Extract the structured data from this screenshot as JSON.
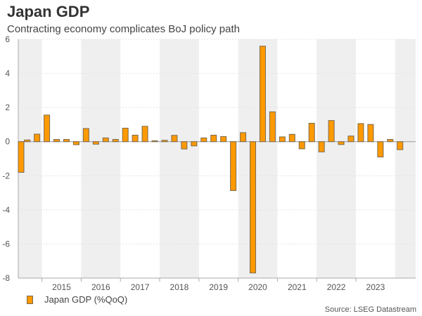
{
  "title": "Japan GDP",
  "subtitle": "Contracting economy complicates BoJ policy path",
  "source": "Source: LSEG Datastream",
  "colors": {
    "bar": "#ff9900",
    "bar_border": "#7a6a50",
    "band": "#efefef"
  },
  "chart_data": {
    "type": "bar",
    "title": "Japan GDP",
    "subtitle": "Contracting economy complicates BoJ policy path",
    "xlabel": "",
    "ylabel": "",
    "ylim": [
      -8,
      6
    ],
    "yticks": [
      6,
      4,
      2,
      0,
      -2,
      -4,
      -6,
      -8
    ],
    "xtick_labels": [
      "2015",
      "2016",
      "2017",
      "2018",
      "2019",
      "2020",
      "2021",
      "2022",
      "2023"
    ],
    "grid": true,
    "legend": "bottom-left",
    "categories": [
      "2014Q2",
      "2014Q3",
      "2014Q4",
      "2015Q1",
      "2015Q2",
      "2015Q3",
      "2015Q4",
      "2016Q1",
      "2016Q2",
      "2016Q3",
      "2016Q4",
      "2017Q1",
      "2017Q2",
      "2017Q3",
      "2017Q4",
      "2018Q1",
      "2018Q2",
      "2018Q3",
      "2018Q4",
      "2019Q1",
      "2019Q2",
      "2019Q3",
      "2019Q4",
      "2020Q1",
      "2020Q2",
      "2020Q3",
      "2020Q4",
      "2021Q1",
      "2021Q2",
      "2021Q3",
      "2021Q4",
      "2022Q1",
      "2022Q2",
      "2022Q3",
      "2022Q4",
      "2023Q1",
      "2023Q2",
      "2023Q3",
      "2023Q4",
      "2024Q1"
    ],
    "series": [
      {
        "name": "Japan GDP (%QoQ)",
        "values": [
          -1.8,
          0.1,
          0.44,
          1.56,
          0.13,
          0.13,
          -0.18,
          0.77,
          -0.15,
          0.22,
          0.13,
          0.79,
          0.38,
          0.9,
          0.05,
          0.08,
          0.37,
          -0.43,
          -0.25,
          0.22,
          0.38,
          0.3,
          -2.87,
          0.53,
          -7.7,
          5.6,
          1.75,
          0.28,
          0.43,
          -0.42,
          1.08,
          -0.6,
          1.24,
          -0.17,
          0.33,
          1.06,
          1.01,
          -0.9,
          0.13,
          -0.47
        ]
      }
    ]
  }
}
